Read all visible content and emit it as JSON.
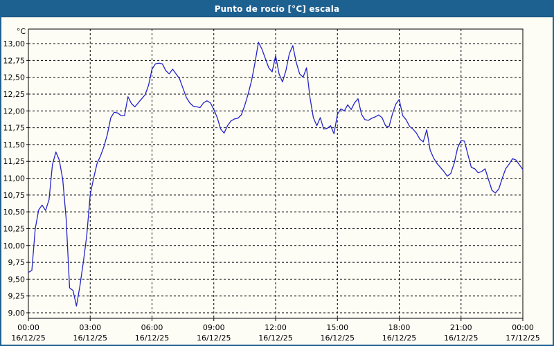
{
  "window": {
    "title": "Punto de rocío [°C] escala"
  },
  "colors": {
    "frame_blue": "#1d6191",
    "title_text": "#ffffff",
    "series_line": "#2323c8",
    "grid": "#000000",
    "background": "#fdfdf6"
  },
  "chart_data": {
    "type": "line",
    "title": "Punto de rocío [°C] escala",
    "y_unit_label": "°C",
    "ylabel": "",
    "xlabel": "",
    "ylim": [
      8.9,
      13.2
    ],
    "xlim_hours": [
      0,
      24
    ],
    "grid": "dashed",
    "legend": "none",
    "y_ticks": [
      {
        "value": 13.0,
        "label": "13,00"
      },
      {
        "value": 12.75,
        "label": "12,75"
      },
      {
        "value": 12.5,
        "label": "12,50"
      },
      {
        "value": 12.25,
        "label": "12,25"
      },
      {
        "value": 12.0,
        "label": "12,00"
      },
      {
        "value": 11.75,
        "label": "11,75"
      },
      {
        "value": 11.5,
        "label": "11,50"
      },
      {
        "value": 11.25,
        "label": "11,25"
      },
      {
        "value": 11.0,
        "label": "11,00"
      },
      {
        "value": 10.75,
        "label": "10,75"
      },
      {
        "value": 10.5,
        "label": "10,50"
      },
      {
        "value": 10.25,
        "label": "10,25"
      },
      {
        "value": 10.0,
        "label": "10,00"
      },
      {
        "value": 9.75,
        "label": "9,75"
      },
      {
        "value": 9.5,
        "label": "9,50"
      },
      {
        "value": 9.25,
        "label": "9,25"
      },
      {
        "value": 9.0,
        "label": "9,00"
      }
    ],
    "x_ticks": [
      {
        "hour": 0,
        "time": "00:00",
        "date": "16/12/25"
      },
      {
        "hour": 3,
        "time": "03:00",
        "date": "16/12/25"
      },
      {
        "hour": 6,
        "time": "06:00",
        "date": "16/12/25"
      },
      {
        "hour": 9,
        "time": "09:00",
        "date": "16/12/25"
      },
      {
        "hour": 12,
        "time": "12:00",
        "date": "16/12/25"
      },
      {
        "hour": 15,
        "time": "15:00",
        "date": "16/12/25"
      },
      {
        "hour": 18,
        "time": "18:00",
        "date": "16/12/25"
      },
      {
        "hour": 21,
        "time": "21:00",
        "date": "16/12/25"
      },
      {
        "hour": 24,
        "time": "00:00",
        "date": "17/12/25"
      }
    ],
    "series": [
      {
        "name": "Punto de rocío [°C]",
        "color": "#2323c8",
        "time_start_minutes": 0,
        "time_step_minutes": 10,
        "values": [
          9.6,
          9.63,
          10.25,
          10.53,
          10.6,
          10.52,
          10.68,
          11.2,
          11.39,
          11.27,
          10.98,
          10.4,
          9.37,
          9.33,
          9.1,
          9.4,
          9.75,
          10.15,
          10.76,
          11.0,
          11.22,
          11.33,
          11.47,
          11.65,
          11.9,
          11.98,
          11.97,
          11.93,
          11.93,
          12.21,
          12.11,
          12.06,
          12.12,
          12.18,
          12.24,
          12.38,
          12.62,
          12.7,
          12.71,
          12.7,
          12.6,
          12.55,
          12.62,
          12.55,
          12.48,
          12.34,
          12.2,
          12.12,
          12.07,
          12.06,
          12.05,
          12.12,
          12.15,
          12.12,
          12.02,
          11.9,
          11.73,
          11.67,
          11.78,
          11.85,
          11.88,
          11.89,
          11.94,
          12.08,
          12.25,
          12.45,
          12.72,
          13.02,
          12.92,
          12.78,
          12.64,
          12.58,
          12.82,
          12.55,
          12.43,
          12.6,
          12.85,
          12.97,
          12.72,
          12.55,
          12.5,
          12.64,
          12.2,
          11.9,
          11.78,
          11.9,
          11.73,
          11.74,
          11.78,
          11.66,
          11.95,
          12.03,
          12.0,
          12.09,
          12.02,
          12.12,
          12.18,
          11.95,
          11.87,
          11.86,
          11.89,
          11.91,
          11.94,
          11.9,
          11.78,
          11.76,
          11.95,
          12.1,
          12.17,
          11.93,
          11.87,
          11.77,
          11.73,
          11.67,
          11.58,
          11.54,
          11.72,
          11.42,
          11.3,
          11.22,
          11.16,
          11.1,
          11.03,
          11.07,
          11.22,
          11.45,
          11.56,
          11.55,
          11.35,
          11.16,
          11.14,
          11.08,
          11.1,
          11.14,
          10.98,
          10.82,
          10.78,
          10.84,
          11.0,
          11.14,
          11.21,
          11.29,
          11.27,
          11.2,
          11.13
        ]
      }
    ]
  }
}
